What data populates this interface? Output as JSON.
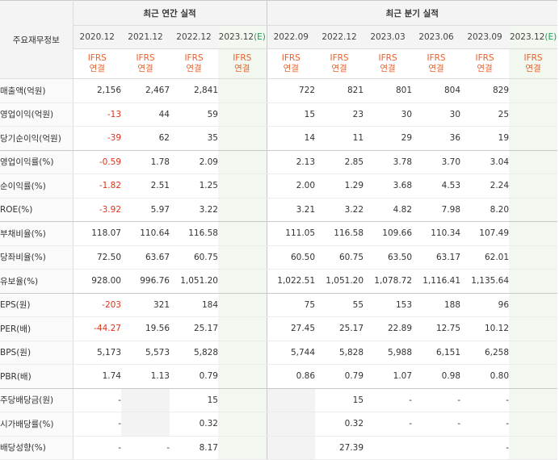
{
  "header": {
    "row_label": "주요재무정보",
    "annual_title": "최근 연간 실적",
    "quarterly_title": "최근 분기 실적",
    "annual_periods": [
      {
        "date": "2020.12",
        "est": ""
      },
      {
        "date": "2021.12",
        "est": ""
      },
      {
        "date": "2022.12",
        "est": ""
      },
      {
        "date": "2023.12",
        "est": "(E)"
      }
    ],
    "quarterly_periods": [
      {
        "date": "2022.09",
        "est": ""
      },
      {
        "date": "2022.12",
        "est": ""
      },
      {
        "date": "2023.03",
        "est": ""
      },
      {
        "date": "2023.06",
        "est": ""
      },
      {
        "date": "2023.09",
        "est": ""
      },
      {
        "date": "2023.12",
        "est": "(E)"
      }
    ],
    "basis_top": "IFRS",
    "basis_bottom": "연결"
  },
  "rows": [
    {
      "label": "매출액(억원)",
      "values": [
        "2,156",
        "2,467",
        "2,841",
        "",
        "722",
        "821",
        "801",
        "804",
        "829",
        ""
      ]
    },
    {
      "label": "영업이익(억원)",
      "values": [
        "-13",
        "44",
        "59",
        "",
        "15",
        "23",
        "30",
        "30",
        "25",
        ""
      ]
    },
    {
      "label": "당기순이익(억원)",
      "values": [
        "-39",
        "62",
        "35",
        "",
        "14",
        "11",
        "29",
        "36",
        "19",
        ""
      ]
    },
    {
      "label": "영업이익률(%)",
      "values": [
        "-0.59",
        "1.78",
        "2.09",
        "",
        "2.13",
        "2.85",
        "3.78",
        "3.70",
        "3.04",
        ""
      ]
    },
    {
      "label": "순이익률(%)",
      "values": [
        "-1.82",
        "2.51",
        "1.25",
        "",
        "2.00",
        "1.29",
        "3.68",
        "4.53",
        "2.24",
        ""
      ]
    },
    {
      "label": "ROE(%)",
      "values": [
        "-3.92",
        "5.97",
        "3.22",
        "",
        "3.21",
        "3.22",
        "4.82",
        "7.98",
        "8.20",
        ""
      ]
    },
    {
      "label": "부채비율(%)",
      "values": [
        "118.07",
        "110.64",
        "116.58",
        "",
        "111.05",
        "116.58",
        "109.66",
        "110.34",
        "107.49",
        ""
      ]
    },
    {
      "label": "당좌비율(%)",
      "values": [
        "72.50",
        "63.67",
        "60.75",
        "",
        "60.50",
        "60.75",
        "63.50",
        "63.17",
        "62.01",
        ""
      ]
    },
    {
      "label": "유보율(%)",
      "values": [
        "928.00",
        "996.76",
        "1,051.20",
        "",
        "1,022.51",
        "1,051.20",
        "1,078.72",
        "1,116.41",
        "1,135.64",
        ""
      ]
    },
    {
      "label": "EPS(원)",
      "values": [
        "-203",
        "321",
        "184",
        "",
        "75",
        "55",
        "153",
        "188",
        "96",
        ""
      ]
    },
    {
      "label": "PER(배)",
      "values": [
        "-44.27",
        "19.56",
        "25.17",
        "",
        "27.45",
        "25.17",
        "22.89",
        "12.75",
        "10.12",
        ""
      ]
    },
    {
      "label": "BPS(원)",
      "values": [
        "5,173",
        "5,573",
        "5,828",
        "",
        "5,744",
        "5,828",
        "5,988",
        "6,151",
        "6,258",
        ""
      ]
    },
    {
      "label": "PBR(배)",
      "values": [
        "1.74",
        "1.13",
        "0.79",
        "",
        "0.86",
        "0.79",
        "1.07",
        "0.98",
        "0.80",
        ""
      ]
    },
    {
      "label": "주당배당금(원)",
      "values": [
        "-",
        "",
        "15",
        "",
        "",
        "15",
        "-",
        "-",
        "-",
        ""
      ]
    },
    {
      "label": "시가배당률(%)",
      "values": [
        "-",
        "",
        "0.32",
        "",
        "",
        "0.32",
        "-",
        "-",
        "-",
        ""
      ]
    },
    {
      "label": "배당성향(%)",
      "values": [
        "-",
        "-",
        "8.17",
        "",
        "",
        "27.39",
        "",
        "",
        "-",
        ""
      ]
    }
  ],
  "colors": {
    "negative": "#e0321b",
    "basis_text": "#e8612c",
    "estimate_mark": "#1a9d5b",
    "estimate_column_bg": "#f2f8ef"
  }
}
